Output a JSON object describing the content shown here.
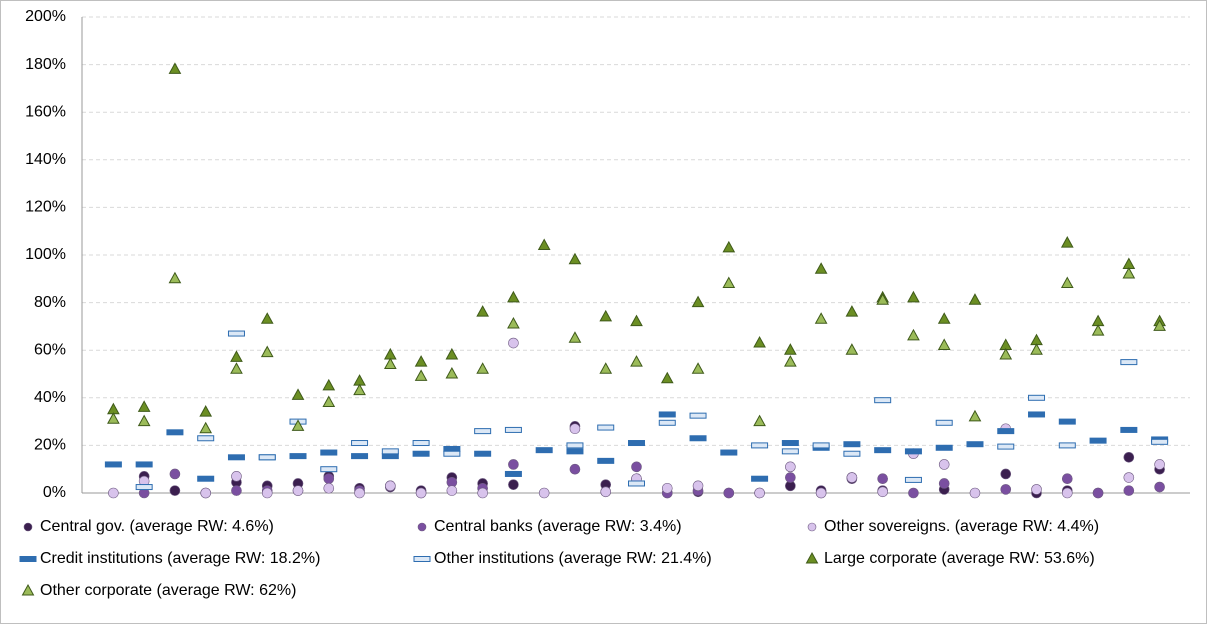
{
  "chart_data": {
    "type": "dot",
    "categories": [
      null,
      null,
      null,
      null,
      null,
      null,
      null,
      null,
      null,
      null,
      null,
      null,
      null,
      null,
      null,
      null,
      null,
      null,
      null,
      null,
      null,
      null,
      null,
      null,
      null,
      null,
      null,
      null,
      null,
      null,
      null,
      null,
      null,
      null,
      null
    ],
    "ylim": [
      0,
      200
    ],
    "yticks": [
      {
        "value": 0,
        "label": "0%"
      },
      {
        "value": 20,
        "label": "20%"
      },
      {
        "value": 40,
        "label": "40%"
      },
      {
        "value": 60,
        "label": "60%"
      },
      {
        "value": 80,
        "label": "80%"
      },
      {
        "value": 100,
        "label": "100%"
      },
      {
        "value": 120,
        "label": "120%"
      },
      {
        "value": 140,
        "label": "140%"
      },
      {
        "value": 160,
        "label": "160%"
      },
      {
        "value": 180,
        "label": "180%"
      },
      {
        "value": 200,
        "label": "200%"
      }
    ],
    "grid": true,
    "series": [
      {
        "name": "Central gov. (average RW: 4.6%)",
        "color": "#3b1f4f",
        "marker": "circle",
        "values": [
          null,
          7,
          1,
          0,
          4.5,
          3,
          4,
          7,
          2,
          2.5,
          1,
          6.5,
          4,
          3.5,
          null,
          28,
          3.5,
          6,
          0,
          0.5,
          0,
          0,
          3,
          1,
          6,
          1,
          null,
          1.5,
          null,
          8,
          0,
          1,
          0,
          15,
          10
        ]
      },
      {
        "name": "Central banks (average RW: 3.4%)",
        "color": "#7a4fa0",
        "marker": "circle",
        "values": [
          null,
          0,
          8,
          null,
          1,
          1,
          1,
          6,
          1,
          3,
          0,
          4.5,
          2,
          12,
          null,
          10,
          0.5,
          11,
          0,
          1,
          0,
          null,
          6.5,
          0,
          6.5,
          6,
          0,
          4,
          null,
          1.5,
          null,
          6,
          0,
          1,
          2.5
        ]
      },
      {
        "name": "Other sovereigns. (average RW: 4.4%)",
        "color": "#d8c3ec",
        "marker": "circle",
        "values": [
          0,
          5,
          null,
          0,
          7,
          0,
          1,
          2,
          0,
          3,
          0,
          1,
          0,
          63,
          0,
          27,
          0.5,
          6,
          2,
          3,
          null,
          0,
          11,
          0,
          6.5,
          0.5,
          16.5,
          12,
          0,
          27,
          1.5,
          0,
          null,
          6.5,
          12
        ]
      },
      {
        "name": "Credit institutions (average RW: 18.2%)",
        "color": "#2e6db0",
        "marker": "dash",
        "values": [
          12,
          12,
          25.5,
          6,
          15,
          15,
          15.5,
          17,
          15.5,
          15.5,
          16.5,
          18.5,
          16.5,
          8,
          18,
          17.5,
          13.5,
          21,
          33,
          23,
          17,
          6,
          21,
          19,
          20.5,
          18,
          17.5,
          19,
          20.5,
          26,
          33,
          30,
          22,
          26.5,
          22.5
        ]
      },
      {
        "name": "Other institutions (average RW: 21.4%)",
        "color": "#dce8f6",
        "marker": "dash",
        "values": [
          null,
          2.5,
          null,
          23,
          67,
          15,
          30,
          10,
          21,
          17.5,
          21,
          16.5,
          26,
          26.5,
          null,
          20,
          27.5,
          4,
          29.5,
          32.5,
          null,
          20,
          17.5,
          20,
          16.5,
          39,
          5.5,
          29.5,
          null,
          19.5,
          40,
          20,
          null,
          55,
          21.5
        ]
      },
      {
        "name": "Large corporate (average RW: 53.6%)",
        "color": "#6b8e23",
        "marker": "triangle",
        "values": [
          35,
          36,
          178,
          34,
          57,
          73,
          41,
          45,
          47,
          58,
          55,
          58,
          76,
          82,
          104,
          98,
          74,
          72,
          48,
          80,
          103,
          63,
          60,
          94,
          76,
          82,
          82,
          73,
          81,
          62,
          64,
          105,
          72,
          96,
          72
        ]
      },
      {
        "name": "Other corporate (average RW: 62%)",
        "color": "#9bbb59",
        "marker": "triangle",
        "values": [
          31,
          30,
          90,
          27,
          52,
          59,
          28,
          38,
          43,
          54,
          49,
          50,
          52,
          71,
          null,
          65,
          52,
          55,
          null,
          52,
          88,
          30,
          55,
          73,
          60,
          81,
          66,
          62,
          32,
          58,
          60,
          88,
          68,
          92,
          70
        ]
      }
    ]
  }
}
